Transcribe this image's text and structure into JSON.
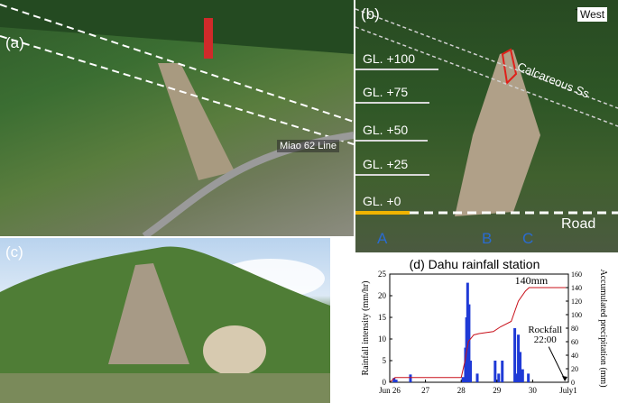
{
  "panel_a": {
    "label": "(a)",
    "line_label": "Miao 62 Line"
  },
  "panel_b": {
    "label": "(b)",
    "north_label": "West",
    "gl_levels": [
      "GL. +100",
      "GL. +75",
      "GL. +50",
      "GL. +25",
      "GL. +0"
    ],
    "formation_label": "Calcareous Ss",
    "road_label": "Road",
    "points": [
      "A",
      "B",
      "C"
    ]
  },
  "panel_c": {
    "label": "(c)"
  },
  "chart_data": {
    "type": "bar",
    "title": "(d) Dahu rainfall station",
    "ylabel": "Rainfall intensity (mm/hr)",
    "y2label": "Accumulated precipitation (mm)",
    "xlim": [
      26,
      31
    ],
    "ylim": [
      0,
      25
    ],
    "y2lim": [
      0,
      160
    ],
    "x_ticks": [
      "Jun 26",
      "27",
      "28",
      "29",
      "30",
      "July1"
    ],
    "y_ticks": [
      "0",
      "5",
      "10",
      "15",
      "20",
      "25"
    ],
    "y2_ticks": [
      "0",
      "20",
      "40",
      "60",
      "80",
      "100",
      "120",
      "140",
      "160"
    ],
    "bars": [
      {
        "x": 26.12,
        "y": 1.0
      },
      {
        "x": 26.18,
        "y": 0.6
      },
      {
        "x": 26.58,
        "y": 1.8
      },
      {
        "x": 28.05,
        "y": 1.2
      },
      {
        "x": 28.12,
        "y": 8.0
      },
      {
        "x": 28.15,
        "y": 15.0
      },
      {
        "x": 28.18,
        "y": 23.0
      },
      {
        "x": 28.22,
        "y": 18.0
      },
      {
        "x": 28.26,
        "y": 5.0
      },
      {
        "x": 28.45,
        "y": 2.0
      },
      {
        "x": 28.95,
        "y": 5.0
      },
      {
        "x": 29.05,
        "y": 2.0
      },
      {
        "x": 29.15,
        "y": 5.0
      },
      {
        "x": 29.5,
        "y": 12.5
      },
      {
        "x": 29.55,
        "y": 2.0
      },
      {
        "x": 29.6,
        "y": 11.0
      },
      {
        "x": 29.65,
        "y": 7.0
      },
      {
        "x": 29.72,
        "y": 3.0
      },
      {
        "x": 29.88,
        "y": 2.0
      }
    ],
    "accumulated": [
      {
        "x": 26.0,
        "y": 0
      },
      {
        "x": 26.15,
        "y": 7
      },
      {
        "x": 28.0,
        "y": 7
      },
      {
        "x": 28.1,
        "y": 30
      },
      {
        "x": 28.2,
        "y": 60
      },
      {
        "x": 28.35,
        "y": 70
      },
      {
        "x": 28.5,
        "y": 72
      },
      {
        "x": 28.9,
        "y": 75
      },
      {
        "x": 29.1,
        "y": 82
      },
      {
        "x": 29.4,
        "y": 90
      },
      {
        "x": 29.6,
        "y": 120
      },
      {
        "x": 29.8,
        "y": 135
      },
      {
        "x": 29.9,
        "y": 140
      },
      {
        "x": 31.0,
        "y": 140
      }
    ],
    "accum_label": "140mm",
    "annotation": {
      "text": "Rockfall",
      "subtext": "22:00",
      "x": 30.9,
      "y": 0
    },
    "colors": {
      "bars": "#1f3ad6",
      "accumulated": "#c8101a",
      "frame": "#000000"
    }
  }
}
